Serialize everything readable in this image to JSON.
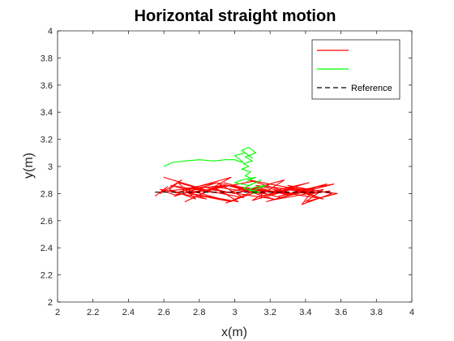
{
  "chart_data": {
    "type": "line",
    "title": "Horizontal straight motion",
    "xlabel": "x(m)",
    "ylabel": "y(m)",
    "xlim": [
      2,
      4
    ],
    "ylim": [
      2,
      4
    ],
    "xticks": [
      2,
      2.2,
      2.4,
      2.6,
      2.8,
      3,
      3.2,
      3.4,
      3.6,
      3.8,
      4
    ],
    "yticks": [
      2,
      2.2,
      2.4,
      2.6,
      2.8,
      3,
      3.2,
      3.4,
      3.6,
      3.8,
      4
    ],
    "xtick_labels": [
      "2",
      "2.2",
      "2.4",
      "2.6",
      "2.8",
      "3",
      "3.2",
      "3.4",
      "3.6",
      "3.8",
      "4"
    ],
    "ytick_labels": [
      "2",
      "2.2",
      "2.4",
      "2.6",
      "2.8",
      "3",
      "3.2",
      "3.4",
      "3.6",
      "3.8",
      "4"
    ],
    "grid": false,
    "legend_position": "top-right",
    "series": [
      {
        "name": "",
        "color": "#ff0000",
        "style": "solid",
        "x": [
          2.55,
          2.62,
          2.58,
          2.7,
          2.63,
          2.78,
          2.68,
          2.85,
          2.72,
          2.92,
          2.8,
          2.98,
          2.76,
          3.05,
          2.9,
          3.12,
          2.95,
          3.2,
          3.0,
          3.28,
          3.1,
          3.35,
          3.15,
          3.42,
          3.22,
          3.5,
          3.3,
          3.55,
          3.38,
          3.45,
          3.25,
          3.52,
          3.18,
          3.4,
          3.08,
          3.32,
          2.96,
          3.22,
          2.86,
          3.1,
          2.74,
          2.98,
          2.64,
          2.88,
          2.6,
          2.8,
          2.66,
          2.9,
          2.7,
          2.84,
          2.62,
          2.95,
          2.75,
          3.02,
          2.88,
          3.15,
          2.94,
          3.26,
          3.04,
          3.36,
          3.12,
          3.46,
          3.2,
          3.56,
          3.34,
          3.48,
          3.28,
          3.58,
          3.4,
          3.5,
          3.3,
          3.14,
          3.0,
          2.82,
          2.68,
          2.58,
          2.66,
          2.8,
          2.94,
          3.06,
          3.18,
          3.3,
          3.44,
          3.54
        ],
        "y": [
          2.78,
          2.85,
          2.8,
          2.9,
          2.83,
          2.76,
          2.88,
          2.82,
          2.74,
          2.86,
          2.79,
          2.92,
          2.84,
          2.77,
          2.88,
          2.81,
          2.73,
          2.87,
          2.8,
          2.9,
          2.75,
          2.84,
          2.78,
          2.88,
          2.82,
          2.76,
          2.86,
          2.8,
          2.72,
          2.84,
          2.78,
          2.87,
          2.74,
          2.82,
          2.9,
          2.8,
          2.86,
          2.76,
          2.83,
          2.89,
          2.8,
          2.74,
          2.86,
          2.81,
          2.92,
          2.84,
          2.78,
          2.88,
          2.83,
          2.76,
          2.82,
          2.86,
          2.8,
          2.74,
          2.85,
          2.8,
          2.88,
          2.77,
          2.84,
          2.79,
          2.86,
          2.81,
          2.75,
          2.87,
          2.82,
          2.77,
          2.85,
          2.8,
          2.74,
          2.83,
          2.79,
          2.84,
          2.8,
          2.85,
          2.81,
          2.83,
          2.79,
          2.82,
          2.8,
          2.84,
          2.81,
          2.83,
          2.8,
          2.82
        ]
      },
      {
        "name": "",
        "color": "#00ff00",
        "style": "solid",
        "x": [
          2.6,
          2.65,
          2.72,
          2.8,
          2.88,
          2.95,
          3.0,
          3.02,
          3.05,
          3.0,
          3.06,
          3.1,
          3.04,
          3.08,
          3.12,
          3.06,
          3.1,
          3.05,
          3.08,
          3.04,
          3.09,
          3.06,
          3.1,
          3.07,
          3.12,
          3.04,
          3.0,
          3.08,
          3.15,
          3.05,
          3.1,
          3.18,
          3.12,
          3.08,
          3.14,
          3.1
        ],
        "y": [
          3.0,
          3.03,
          3.04,
          3.05,
          3.04,
          3.05,
          3.05,
          3.04,
          3.03,
          3.08,
          3.1,
          3.06,
          3.12,
          3.14,
          3.1,
          3.07,
          3.04,
          3.02,
          3.0,
          2.98,
          2.96,
          2.93,
          2.91,
          2.89,
          2.92,
          2.9,
          2.88,
          2.86,
          2.9,
          2.84,
          2.82,
          2.86,
          2.85,
          2.83,
          2.81,
          2.8
        ]
      },
      {
        "name": "Reference",
        "color": "#000000",
        "style": "dashed",
        "x": [
          2.55,
          3.55
        ],
        "y": [
          2.81,
          2.81
        ]
      }
    ]
  }
}
